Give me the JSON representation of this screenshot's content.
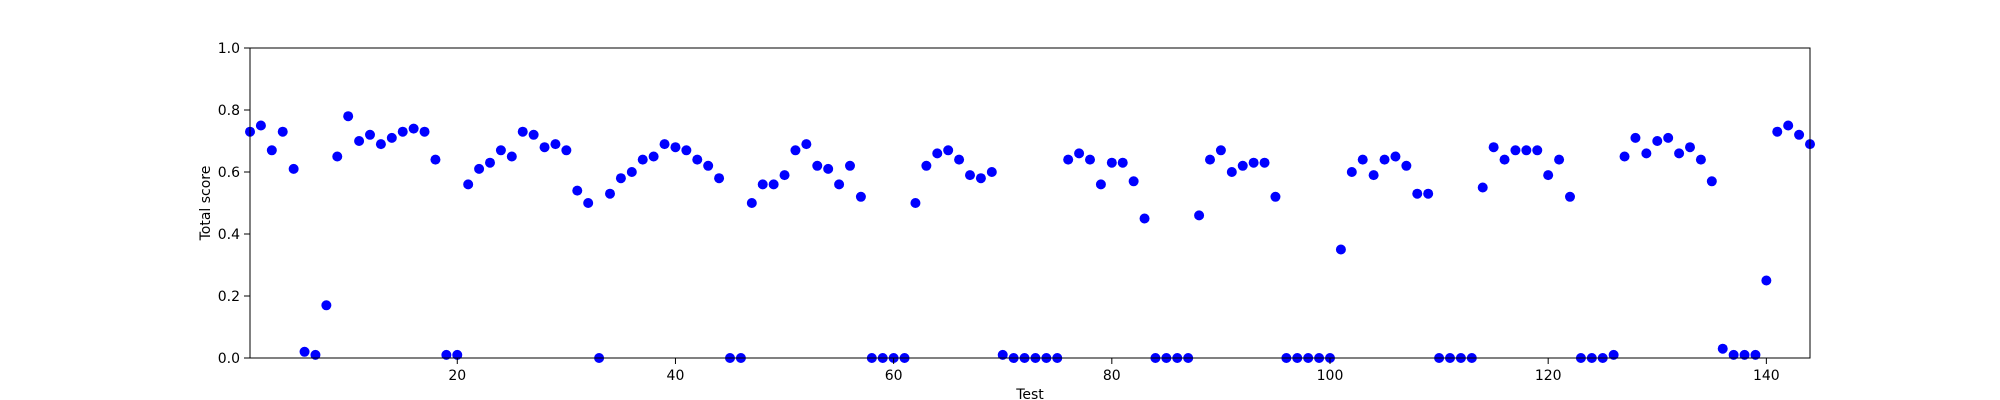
{
  "chart_data": {
    "type": "scatter",
    "title": "",
    "xlabel": "Test",
    "ylabel": "Total score",
    "xlim": [
      1,
      144
    ],
    "ylim": [
      0.0,
      1.0
    ],
    "xticks": [
      20,
      40,
      60,
      80,
      100,
      120,
      140
    ],
    "yticks": [
      0.0,
      0.2,
      0.4,
      0.6,
      0.8,
      1.0
    ],
    "grid": false,
    "marker_color": "#0000ff",
    "series": [
      {
        "x": [
          1,
          2,
          3,
          4,
          5,
          6,
          7,
          8,
          9,
          10,
          11,
          12,
          13,
          14,
          15,
          16,
          17,
          18,
          19,
          20,
          21,
          22,
          23,
          24,
          25,
          26,
          27,
          28,
          29,
          30,
          31,
          32,
          33,
          34,
          35,
          36,
          37,
          38,
          39,
          40,
          41,
          42,
          43,
          44,
          45,
          46,
          47,
          48,
          49,
          50,
          51,
          52,
          53,
          54,
          55,
          56,
          57,
          58,
          59,
          60,
          61,
          62,
          63,
          64,
          65,
          66,
          67,
          68,
          69,
          70,
          71,
          72,
          73,
          74,
          75,
          76,
          77,
          78,
          79,
          80,
          81,
          82,
          83,
          84,
          85,
          86,
          87,
          88,
          89,
          90,
          91,
          92,
          93,
          94,
          95,
          96,
          97,
          98,
          99,
          100,
          101,
          102,
          103,
          104,
          105,
          106,
          107,
          108,
          109,
          110,
          111,
          112,
          113,
          114,
          115,
          116,
          117,
          118,
          119,
          120,
          121,
          122,
          123,
          124,
          125,
          126,
          127,
          128,
          129,
          130,
          131,
          132,
          133,
          134,
          135,
          136,
          137,
          138,
          139,
          140,
          141,
          142,
          143,
          144
        ],
        "y": [
          0.73,
          0.75,
          0.67,
          0.73,
          0.61,
          0.02,
          0.01,
          0.17,
          0.65,
          0.78,
          0.7,
          0.72,
          0.69,
          0.71,
          0.73,
          0.74,
          0.73,
          0.64,
          0.01,
          0.01,
          0.56,
          0.61,
          0.63,
          0.67,
          0.65,
          0.73,
          0.72,
          0.68,
          0.69,
          0.67,
          0.54,
          0.5,
          0.0,
          0.53,
          0.58,
          0.6,
          0.64,
          0.65,
          0.69,
          0.68,
          0.67,
          0.64,
          0.62,
          0.58,
          0.0,
          0.0,
          0.5,
          0.56,
          0.56,
          0.59,
          0.67,
          0.69,
          0.62,
          0.61,
          0.56,
          0.62,
          0.52,
          0.0,
          0.0,
          0.0,
          0.0,
          0.5,
          0.62,
          0.66,
          0.67,
          0.64,
          0.59,
          0.58,
          0.6,
          0.01,
          0.0,
          0.0,
          0.0,
          0.0,
          0.0,
          0.64,
          0.66,
          0.64,
          0.56,
          0.63,
          0.63,
          0.57,
          0.45,
          0.0,
          0.0,
          0.0,
          0.0,
          0.46,
          0.64,
          0.67,
          0.6,
          0.62,
          0.63,
          0.63,
          0.52,
          0.0,
          0.0,
          0.0,
          0.0,
          0.0,
          0.35,
          0.6,
          0.64,
          0.59,
          0.64,
          0.65,
          0.62,
          0.53,
          0.53,
          0.0,
          0.0,
          0.0,
          0.0,
          0.55,
          0.68,
          0.64,
          0.67,
          0.67,
          0.67,
          0.59,
          0.64,
          0.52,
          0.0,
          0.0,
          0.0,
          0.01,
          0.65,
          0.71,
          0.66,
          0.7,
          0.71,
          0.66,
          0.68,
          0.64,
          0.57,
          0.03,
          0.01,
          0.01,
          0.01,
          0.25,
          0.73,
          0.75,
          0.72,
          0.69
        ]
      }
    ]
  }
}
